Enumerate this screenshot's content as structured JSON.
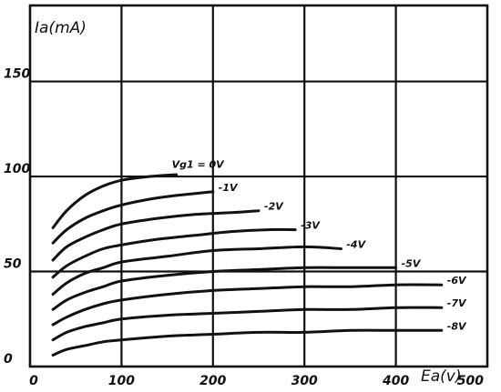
{
  "chart_data": {
    "type": "line",
    "title": "",
    "xlabel": "Ea(v)",
    "ylabel": "Ia(mA)",
    "xlim": [
      0,
      500
    ],
    "ylim": [
      0,
      190
    ],
    "x_ticks": [
      "0",
      "100",
      "200",
      "300",
      "400",
      "500"
    ],
    "y_ticks": [
      "0",
      "50",
      "100",
      "150"
    ],
    "grid": true,
    "series": [
      {
        "name": "Vg1 = 0V",
        "x": [
          25,
          40,
          60,
          80,
          100,
          130,
          160
        ],
        "y": [
          73,
          82,
          90,
          95,
          98,
          100,
          101
        ]
      },
      {
        "name": "-1V",
        "x": [
          25,
          40,
          60,
          80,
          100,
          130,
          160,
          200
        ],
        "y": [
          65,
          72,
          78,
          82,
          85,
          88,
          90,
          92
        ]
      },
      {
        "name": "-2V",
        "x": [
          25,
          40,
          60,
          80,
          100,
          140,
          180,
          220,
          250
        ],
        "y": [
          56,
          63,
          68,
          72,
          75,
          78,
          80,
          81,
          82
        ]
      },
      {
        "name": "-3V",
        "x": [
          25,
          40,
          60,
          80,
          100,
          140,
          180,
          220,
          260,
          290
        ],
        "y": [
          47,
          53,
          58,
          62,
          64,
          67,
          69,
          71,
          72,
          72
        ]
      },
      {
        "name": "-4V",
        "x": [
          25,
          40,
          60,
          80,
          100,
          150,
          200,
          250,
          300,
          340
        ],
        "y": [
          38,
          44,
          49,
          52,
          55,
          58,
          61,
          62,
          63,
          62
        ]
      },
      {
        "name": "-5V",
        "x": [
          25,
          40,
          60,
          80,
          100,
          150,
          200,
          250,
          300,
          350,
          400
        ],
        "y": [
          30,
          35,
          39,
          42,
          45,
          48,
          50,
          51,
          52,
          52,
          52
        ]
      },
      {
        "name": "-6V",
        "x": [
          25,
          40,
          60,
          80,
          100,
          150,
          200,
          250,
          300,
          350,
          400,
          450
        ],
        "y": [
          22,
          26,
          30,
          33,
          35,
          38,
          40,
          41,
          42,
          42,
          43,
          43
        ]
      },
      {
        "name": "-7V",
        "x": [
          25,
          40,
          60,
          80,
          100,
          150,
          200,
          250,
          300,
          350,
          400,
          450
        ],
        "y": [
          14,
          18,
          21,
          23,
          25,
          27,
          28,
          29,
          30,
          30,
          31,
          31
        ]
      },
      {
        "name": "-8V",
        "x": [
          25,
          40,
          60,
          80,
          100,
          150,
          200,
          250,
          300,
          350,
          400,
          450
        ],
        "y": [
          6,
          9,
          11,
          13,
          14,
          16,
          17,
          18,
          18,
          19,
          19,
          19
        ]
      }
    ]
  }
}
